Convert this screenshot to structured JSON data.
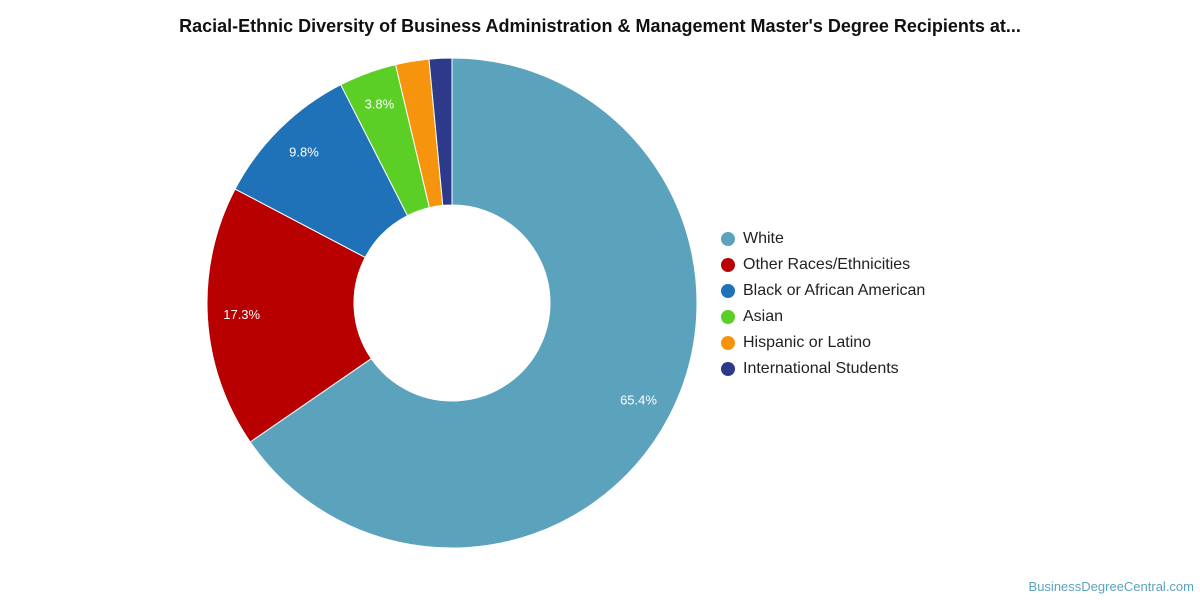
{
  "title": "Racial-Ethnic Diversity of Business Administration & Management Master's Degree Recipients at...",
  "source": "BusinessDegreeCentral.com",
  "chart_data": {
    "type": "pie",
    "variant": "donut",
    "legend_position": "right",
    "slices": [
      {
        "name": "White",
        "value": 65.4,
        "label": "65.4%",
        "color": "#5ba2bd"
      },
      {
        "name": "Other Races/Ethnicities",
        "value": 17.3,
        "label": "17.3%",
        "color": "#b80000"
      },
      {
        "name": "Black or African American",
        "value": 9.8,
        "label": "9.8%",
        "color": "#1f72b8"
      },
      {
        "name": "Asian",
        "value": 3.8,
        "label": "3.8%",
        "color": "#5ccf27"
      },
      {
        "name": "Hispanic or Latino",
        "value": 2.2,
        "label": "",
        "color": "#f7940d"
      },
      {
        "name": "International Students",
        "value": 1.5,
        "label": "",
        "color": "#2d3a8c"
      }
    ]
  }
}
